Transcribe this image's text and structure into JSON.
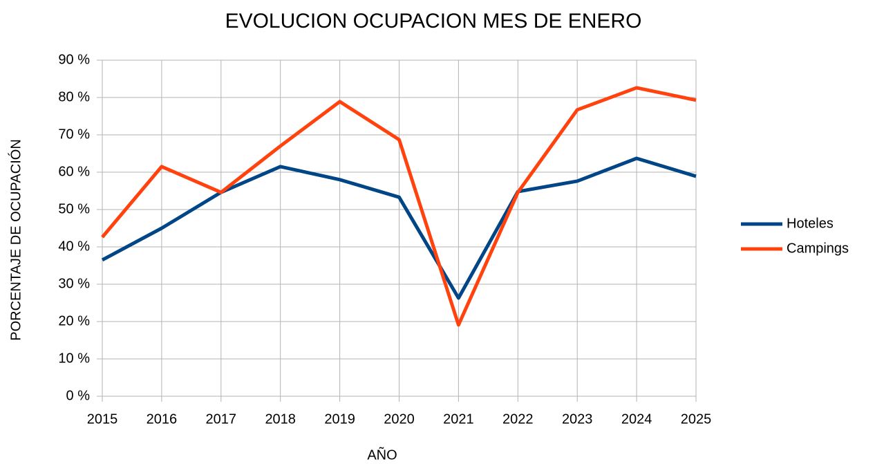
{
  "chart_data": {
    "type": "line",
    "title": "EVOLUCION OCUPACION MES DE ENERO",
    "x_label": "AÑO",
    "y_label": "PORCENTAJE DE OCUPACIÓN",
    "categories": [
      "2015",
      "2016",
      "2017",
      "2018",
      "2019",
      "2020",
      "2021",
      "2022",
      "2023",
      "2024",
      "2025"
    ],
    "series": [
      {
        "name": "Hoteles",
        "color": "#004586",
        "values": [
          36.5,
          45,
          54.6,
          61.5,
          58,
          53.3,
          26.3,
          54.8,
          57.6,
          63.7,
          58.9
        ]
      },
      {
        "name": "Campings",
        "color": "#ff420e",
        "values": [
          42.6,
          61.5,
          54.6,
          67,
          78.9,
          68.7,
          19.1,
          54.6,
          76.7,
          82.6,
          79.3
        ]
      }
    ],
    "ylim": [
      0,
      90
    ],
    "yticks": [
      {
        "value": 0,
        "label": "0 %"
      },
      {
        "value": 10,
        "label": "10 %"
      },
      {
        "value": 20,
        "label": "20 %"
      },
      {
        "value": 30,
        "label": "30 %"
      },
      {
        "value": 40,
        "label": "40 %"
      },
      {
        "value": 50,
        "label": "50 %"
      },
      {
        "value": 60,
        "label": "60 %"
      },
      {
        "value": 70,
        "label": "70 %"
      },
      {
        "value": 80,
        "label": "80 %"
      },
      {
        "value": 90,
        "label": "90 %"
      }
    ],
    "grid": true,
    "legend": "right"
  }
}
